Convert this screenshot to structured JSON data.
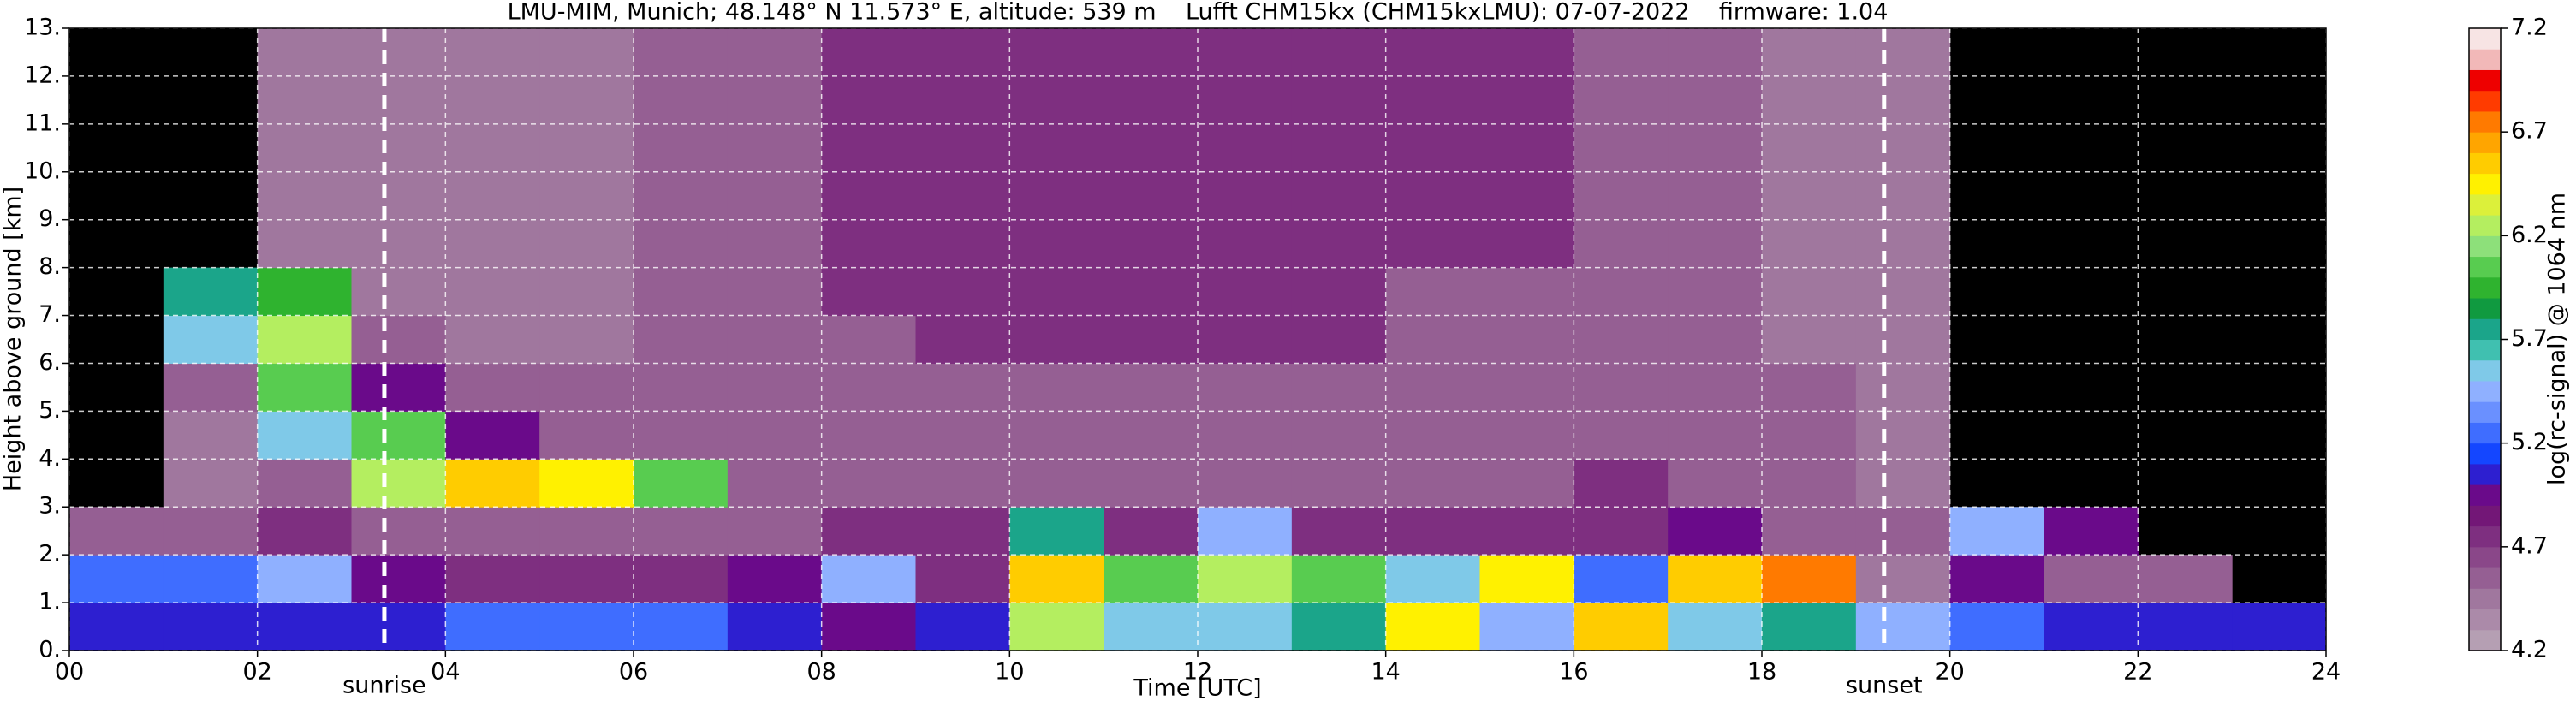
{
  "chart_data": {
    "type": "heatmap",
    "title": "LMU-MIM, Munich; 48.148° N 11.573° E, altitude: 539 m    Lufft CHM15kx (CHM15kxLMU): 07-07-2022    firmware: 1.04",
    "x_label": "Time [UTC]",
    "y_label": "Height above ground [km]",
    "colorbar_label": "log(rc-signal) @ 1064 nm",
    "xlim": [
      0,
      24
    ],
    "ylim": [
      0,
      13
    ],
    "xticks": [
      {
        "value": 0,
        "label": "00"
      },
      {
        "value": 2,
        "label": "02"
      },
      {
        "value": 4,
        "label": "04"
      },
      {
        "value": 6,
        "label": "06"
      },
      {
        "value": 8,
        "label": "08"
      },
      10,
      12,
      14,
      16,
      18,
      20,
      22,
      24
    ],
    "yticks": [
      {
        "value": 0,
        "label": "0."
      },
      {
        "value": 1,
        "label": "1."
      },
      {
        "value": 2,
        "label": "2."
      },
      {
        "value": 3,
        "label": "3."
      },
      {
        "value": 4,
        "label": "4."
      },
      {
        "value": 5,
        "label": "5."
      },
      {
        "value": 6,
        "label": "6."
      },
      {
        "value": 7,
        "label": "7."
      },
      {
        "value": 8,
        "label": "8."
      },
      {
        "value": 9,
        "label": "9."
      },
      {
        "value": 10,
        "label": "10."
      },
      {
        "value": 11,
        "label": "11."
      },
      {
        "value": 12,
        "label": "12."
      },
      {
        "value": 13,
        "label": "13."
      }
    ],
    "grid": true,
    "clim": [
      4.2,
      7.2
    ],
    "cticks": [
      4.2,
      4.7,
      5.2,
      5.7,
      6.2,
      6.7,
      7.2
    ],
    "colors": [
      "#b59fb3",
      "#ab8aa9",
      "#a0779e",
      "#955f93",
      "#8a4789",
      "#7e2f80",
      "#731777",
      "#6a0a8a",
      "#2d1fd0",
      "#1446ff",
      "#3f6dff",
      "#6a90ff",
      "#8fb0ff",
      "#7fc9e8",
      "#40c0b0",
      "#1ba58a",
      "#109a40",
      "#2fb32f",
      "#58cc50",
      "#8de07a",
      "#b4ee60",
      "#dcf03a",
      "#fff100",
      "#ffcc00",
      "#ffa500",
      "#ff7a00",
      "#ff3b00",
      "#ee0000",
      "#f2b8b8",
      "#f7e4e4"
    ],
    "annotations": [
      {
        "x": 3.35,
        "label": "sunrise"
      },
      {
        "x": 19.3,
        "label": "sunset"
      }
    ],
    "xbins": [
      0,
      1,
      2,
      3,
      4,
      5,
      6,
      7,
      8,
      9,
      10,
      11,
      12,
      13,
      14,
      15,
      16,
      17,
      18,
      19,
      20,
      21,
      22,
      23,
      24
    ],
    "ybins": [
      0,
      1,
      2,
      3,
      4,
      5,
      6,
      7,
      8,
      9,
      10,
      11,
      12,
      13
    ],
    "z": [
      [
        5.1,
        5.1,
        5.1,
        5.1,
        5.2,
        5.2,
        5.2,
        5.1,
        5.0,
        5.1,
        6.2,
        5.6,
        5.6,
        5.8,
        6.4,
        5.4,
        6.6,
        5.6,
        5.8,
        5.4,
        5.2,
        5.1,
        5.1,
        5.1
      ],
      [
        5.3,
        5.3,
        5.4,
        5.0,
        4.8,
        4.8,
        4.8,
        4.9,
        5.4,
        4.8,
        6.5,
        6.0,
        6.2,
        6.0,
        5.6,
        6.4,
        5.3,
        6.6,
        6.8,
        4.5,
        4.9,
        4.6,
        4.6,
        null
      ],
      [
        4.6,
        4.6,
        4.8,
        4.6,
        4.6,
        4.6,
        4.6,
        4.6,
        4.7,
        4.7,
        5.8,
        4.8,
        5.4,
        4.8,
        4.7,
        4.7,
        4.8,
        5.0,
        4.6,
        4.6,
        5.4,
        5.0,
        null,
        null
      ],
      [
        null,
        4.5,
        4.6,
        6.2,
        6.6,
        6.4,
        6.0,
        4.6,
        4.6,
        4.6,
        4.6,
        4.6,
        4.6,
        4.6,
        4.6,
        4.6,
        4.7,
        4.6,
        4.6,
        4.5,
        null,
        null,
        null,
        null
      ],
      [
        null,
        4.5,
        5.6,
        6.0,
        4.9,
        4.6,
        4.6,
        4.6,
        4.6,
        4.6,
        4.6,
        4.6,
        4.6,
        4.6,
        4.6,
        4.6,
        4.6,
        4.6,
        4.6,
        4.5,
        null,
        null,
        null,
        null
      ],
      [
        null,
        4.6,
        6.0,
        5.0,
        4.6,
        4.6,
        4.6,
        4.6,
        4.6,
        4.6,
        4.6,
        4.6,
        4.6,
        4.6,
        4.6,
        4.6,
        4.6,
        4.6,
        4.6,
        4.5,
        null,
        null,
        null,
        null
      ],
      [
        null,
        5.6,
        6.3,
        4.6,
        4.5,
        4.5,
        4.6,
        4.6,
        4.6,
        4.7,
        4.7,
        4.7,
        4.7,
        4.7,
        4.6,
        4.6,
        4.6,
        4.6,
        4.5,
        4.5,
        null,
        null,
        null,
        null
      ],
      [
        null,
        5.8,
        5.9,
        4.5,
        4.5,
        4.5,
        4.6,
        4.6,
        4.7,
        4.7,
        4.7,
        4.7,
        4.7,
        4.7,
        4.6,
        4.6,
        4.6,
        4.6,
        4.5,
        4.5,
        null,
        null,
        null,
        null
      ],
      [
        null,
        null,
        4.4,
        4.4,
        4.5,
        4.5,
        4.6,
        4.6,
        4.7,
        4.8,
        4.8,
        4.8,
        4.8,
        4.8,
        4.7,
        4.7,
        4.6,
        4.6,
        4.5,
        4.5,
        null,
        null,
        null,
        null
      ],
      [
        null,
        null,
        4.4,
        4.4,
        4.5,
        4.5,
        4.6,
        4.6,
        4.7,
        4.8,
        4.8,
        4.8,
        4.8,
        4.8,
        4.7,
        4.7,
        4.6,
        4.6,
        4.5,
        4.5,
        null,
        null,
        null,
        null
      ],
      [
        null,
        null,
        4.4,
        4.4,
        4.5,
        4.5,
        4.6,
        4.6,
        4.7,
        4.8,
        4.8,
        4.8,
        4.8,
        4.8,
        4.7,
        4.7,
        4.6,
        4.6,
        4.5,
        4.5,
        null,
        null,
        null,
        null
      ],
      [
        null,
        null,
        4.4,
        4.4,
        4.5,
        4.5,
        4.6,
        4.6,
        4.7,
        4.8,
        4.8,
        4.8,
        4.8,
        4.8,
        4.7,
        4.7,
        4.6,
        4.6,
        4.5,
        4.5,
        null,
        null,
        null,
        null
      ],
      [
        null,
        null,
        4.4,
        4.4,
        4.5,
        4.5,
        4.6,
        4.6,
        4.7,
        4.8,
        4.8,
        4.8,
        4.8,
        4.8,
        4.7,
        4.7,
        4.6,
        4.6,
        4.5,
        4.5,
        null,
        null,
        null,
        null
      ]
    ]
  }
}
